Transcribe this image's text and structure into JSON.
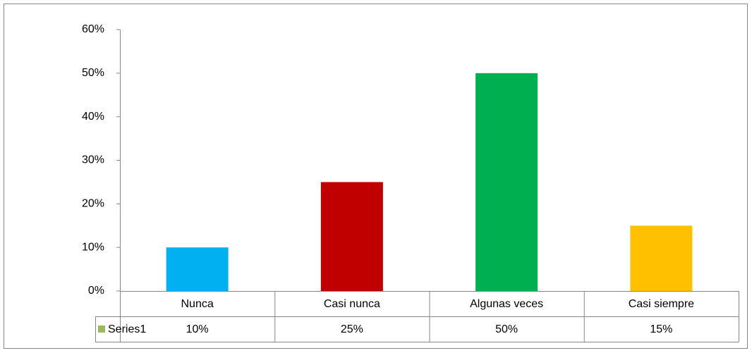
{
  "chart_data": {
    "type": "bar",
    "categories": [
      "Nunca",
      "Casi nunca",
      "Algunas veces",
      "Casi siempre"
    ],
    "series": [
      {
        "name": "Series1",
        "color": "#9bbb59",
        "colors": [
          "#00b0f0",
          "#c00000",
          "#00b050",
          "#ffc000"
        ],
        "values": [
          10,
          25,
          50,
          15
        ],
        "value_labels": [
          "10%",
          "25%",
          "50%",
          "15%"
        ]
      }
    ],
    "ylim": [
      0,
      60
    ],
    "yticks": [
      {
        "value": 0,
        "label": "0%"
      },
      {
        "value": 10,
        "label": "10%"
      },
      {
        "value": 20,
        "label": "20%"
      },
      {
        "value": 30,
        "label": "30%"
      },
      {
        "value": 40,
        "label": "40%"
      },
      {
        "value": 50,
        "label": "50%"
      },
      {
        "value": 60,
        "label": "60%"
      }
    ],
    "data_table": true
  }
}
